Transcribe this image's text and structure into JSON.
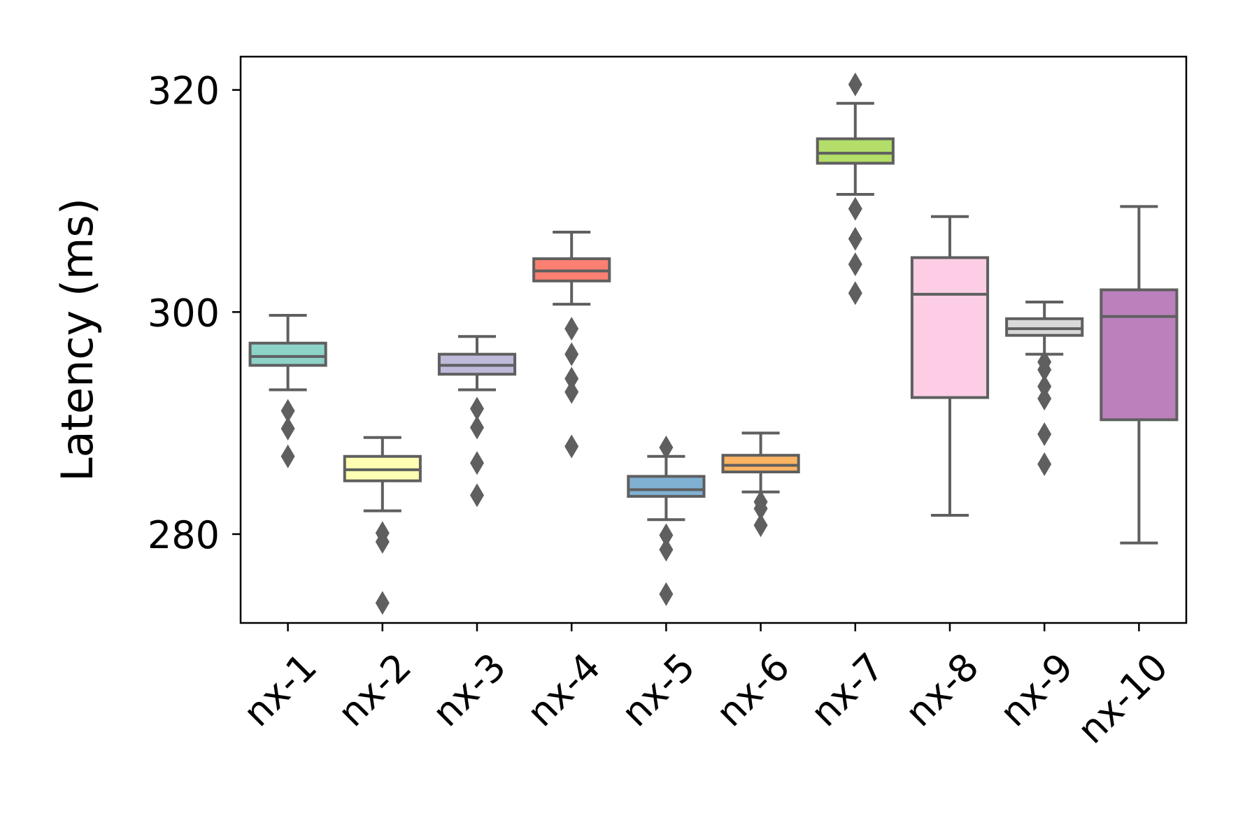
{
  "chart_data": {
    "type": "box",
    "title": "",
    "xlabel": "",
    "ylabel": "Latency (ms)",
    "ylim": [
      272,
      323
    ],
    "yticks": [
      280,
      300,
      320
    ],
    "grid": false,
    "legend": "none",
    "colors": {
      "frame": "#000000",
      "box_edge": "#5f5f5f",
      "outlier": "#5f5f5f"
    },
    "categories": [
      "nx-1",
      "nx-2",
      "nx-3",
      "nx-4",
      "nx-5",
      "nx-6",
      "nx-7",
      "nx-8",
      "nx-9",
      "nx-10"
    ],
    "boxes": [
      {
        "label": "nx-1",
        "color": "#8dd3c7",
        "whislo": 293.0,
        "q1": 295.2,
        "median": 296.0,
        "q3": 297.2,
        "whishi": 299.7,
        "outliers": [
          291.1,
          289.5,
          287.0
        ]
      },
      {
        "label": "nx-2",
        "color": "#ffffb3",
        "whislo": 282.1,
        "q1": 284.8,
        "median": 285.8,
        "q3": 287.0,
        "whishi": 288.7,
        "outliers": [
          280.1,
          279.3,
          273.8
        ]
      },
      {
        "label": "nx-3",
        "color": "#bebada",
        "whislo": 293.0,
        "q1": 294.4,
        "median": 295.2,
        "q3": 296.2,
        "whishi": 297.8,
        "outliers": [
          291.3,
          289.6,
          286.4,
          283.5
        ]
      },
      {
        "label": "nx-4",
        "color": "#fb8072",
        "whislo": 300.7,
        "q1": 302.8,
        "median": 303.7,
        "q3": 304.8,
        "whishi": 307.2,
        "outliers": [
          298.5,
          296.2,
          294.0,
          292.8,
          287.9
        ]
      },
      {
        "label": "nx-5",
        "color": "#80b1d3",
        "whislo": 281.3,
        "q1": 283.4,
        "median": 284.0,
        "q3": 285.2,
        "whishi": 287.0,
        "outliers": [
          287.8,
          279.9,
          278.6,
          274.6
        ]
      },
      {
        "label": "nx-6",
        "color": "#fdb462",
        "whislo": 283.8,
        "q1": 285.6,
        "median": 286.2,
        "q3": 287.1,
        "whishi": 289.1,
        "outliers": [
          282.9,
          282.3,
          280.8
        ]
      },
      {
        "label": "nx-7",
        "color": "#b3de69",
        "whislo": 310.6,
        "q1": 313.4,
        "median": 314.3,
        "q3": 315.6,
        "whishi": 318.8,
        "outliers": [
          320.5,
          309.3,
          306.6,
          304.3,
          301.7
        ]
      },
      {
        "label": "nx-8",
        "color": "#fccde5",
        "whislo": 281.7,
        "q1": 292.3,
        "median": 301.6,
        "q3": 304.9,
        "whishi": 308.6,
        "outliers": []
      },
      {
        "label": "nx-9",
        "color": "#d9d9d9",
        "whislo": 296.2,
        "q1": 297.9,
        "median": 298.5,
        "q3": 299.4,
        "whishi": 300.9,
        "outliers": [
          295.5,
          294.8,
          293.3,
          292.2,
          289.0,
          286.3
        ]
      },
      {
        "label": "nx-10",
        "color": "#bc80bd",
        "whislo": 279.2,
        "q1": 290.3,
        "median": 299.6,
        "q3": 302.0,
        "whishi": 309.5,
        "outliers": []
      }
    ]
  }
}
